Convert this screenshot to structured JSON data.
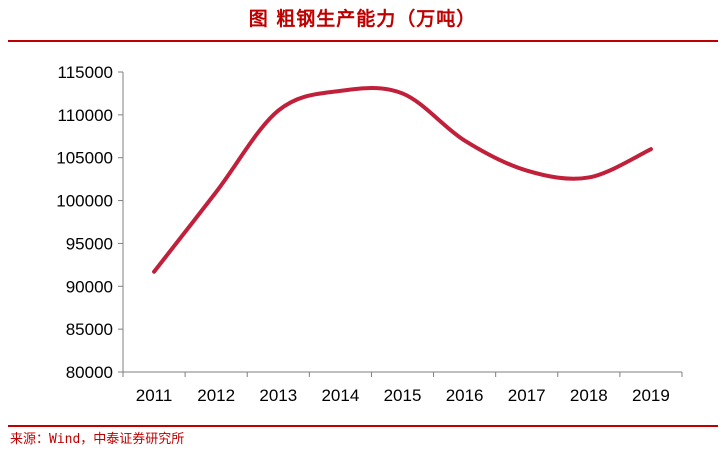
{
  "header": {
    "title": "图 粗钢生产能力（万吨）"
  },
  "footer": {
    "source": "来源：Wind，中泰证券研究所"
  },
  "colors": {
    "accent": "#c00000",
    "series_line": "#c0203a",
    "axis": "#7f7f7f"
  },
  "chart_data": {
    "type": "line",
    "title": "粗钢生产能力（万吨）",
    "xlabel": "",
    "ylabel": "",
    "x": [
      "2011",
      "2012",
      "2013",
      "2014",
      "2015",
      "2016",
      "2017",
      "2018",
      "2019"
    ],
    "series": [
      {
        "values": [
          91700,
          101000,
          110500,
          112800,
          112500,
          107000,
          103500,
          102700,
          106000
        ]
      }
    ],
    "ylim": [
      80000,
      115000
    ],
    "yticks": [
      80000,
      85000,
      90000,
      95000,
      100000,
      105000,
      110000,
      115000
    ],
    "grid": false,
    "legend": "none",
    "smooth": true
  }
}
